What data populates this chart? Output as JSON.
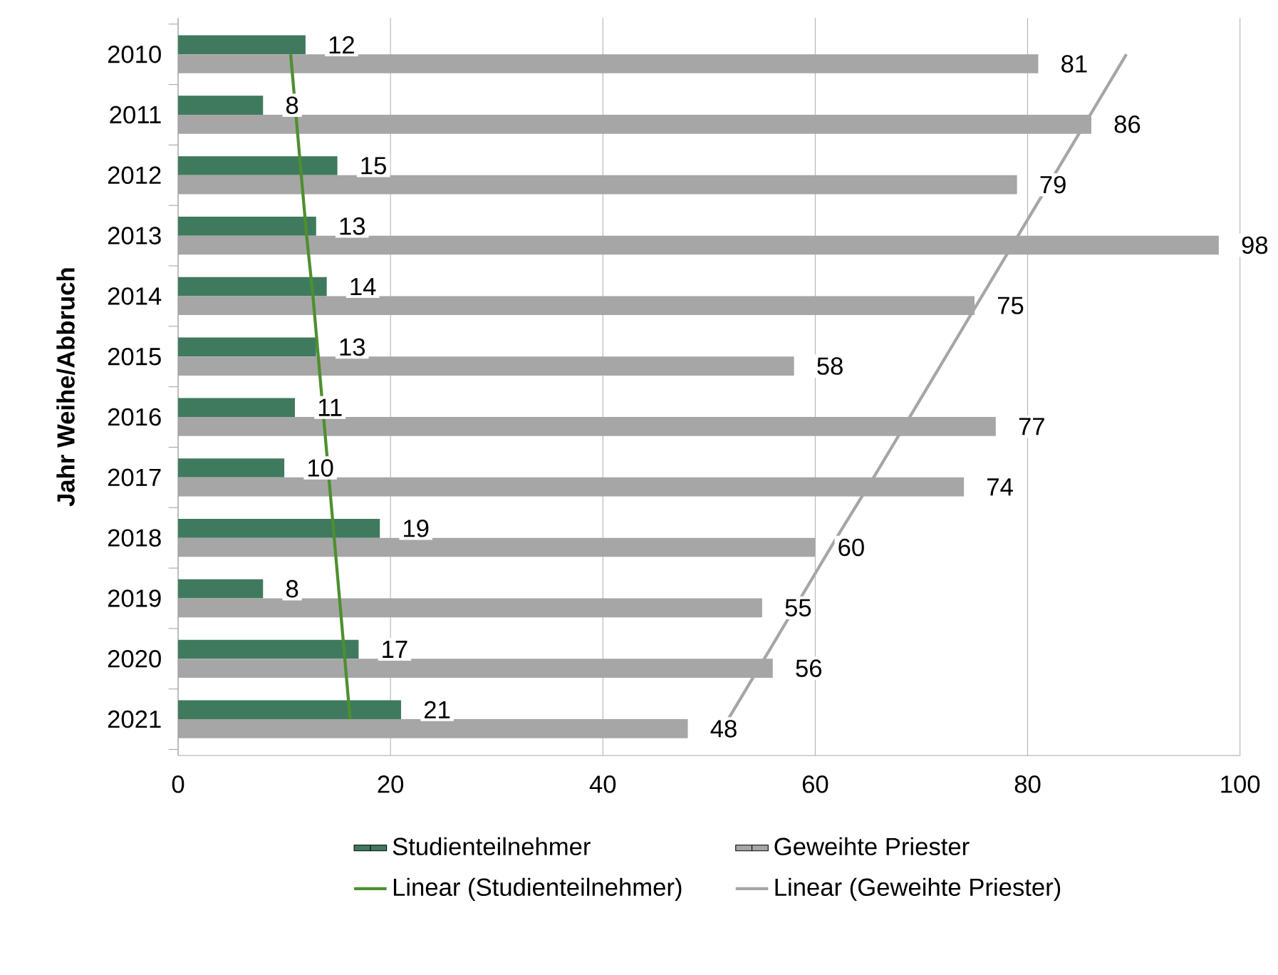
{
  "chart_data": {
    "type": "bar",
    "orientation": "horizontal",
    "ylabel": "Jahr Weihe/Abbruch",
    "categories": [
      "2010",
      "2011",
      "2012",
      "2013",
      "2014",
      "2015",
      "2016",
      "2017",
      "2018",
      "2019",
      "2020",
      "2021"
    ],
    "series": [
      {
        "name": "Studienteilnehmer",
        "color": "#3f7a5e",
        "values": [
          12,
          8,
          15,
          13,
          14,
          13,
          11,
          10,
          19,
          8,
          17,
          21
        ],
        "value_labels": [
          "12",
          "8",
          "15",
          "13",
          "14",
          "13",
          "11",
          "10",
          "19",
          "8",
          "17",
          "21"
        ]
      },
      {
        "name": "Geweihte Priester",
        "color": "#a6a6a6",
        "values": [
          81,
          86,
          79,
          98,
          75,
          58,
          77,
          74,
          60,
          55,
          56,
          48
        ],
        "value_labels": [
          "81",
          "86",
          "79",
          "98",
          "75",
          "58",
          "77",
          "74",
          "60",
          "55",
          "56",
          "48"
        ]
      },
      {
        "name": "Linear (Studienteilnehmer)",
        "type": "line",
        "color": "#4e8f2f",
        "values": [
          10.6,
          11.1,
          11.6,
          12.1,
          12.7,
          13.2,
          13.7,
          14.2,
          14.7,
          15.2,
          15.7,
          16.2
        ]
      },
      {
        "name": "Linear (Geweihte Priester)",
        "type": "line",
        "color": "#a6a6a6",
        "values": [
          89.3,
          85.9,
          82.5,
          79.1,
          75.7,
          72.3,
          68.9,
          65.5,
          62.0,
          58.6,
          55.2,
          51.8
        ]
      }
    ],
    "xlim": [
      0,
      100
    ],
    "xticks": [
      0,
      20,
      40,
      60,
      80,
      100
    ],
    "grid": "x",
    "legend": "bottom"
  }
}
